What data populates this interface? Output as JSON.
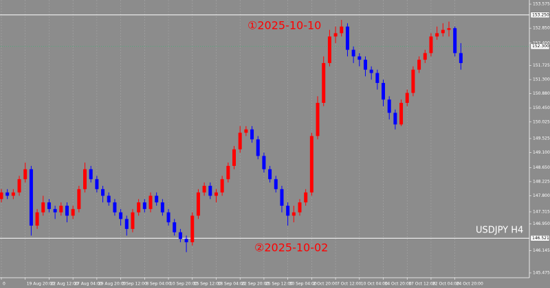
{
  "chart_data": {
    "type": "candlestick",
    "symbol_label": "USDJPY  H4",
    "background": "#8c8c8c",
    "up_color": "#ff0000",
    "down_color": "#0000ff",
    "grid": true,
    "categories": [
      "0",
      null,
      null,
      null,
      "19 Aug 20:00",
      null,
      null,
      null,
      "22 Aug 12:00",
      null,
      null,
      null,
      "27 Aug 04:00",
      null,
      null,
      null,
      "29 Aug 20:00",
      null,
      null,
      null,
      "3 Sep 12:00",
      null,
      null,
      null,
      "8 Sep 04:00",
      null,
      null,
      null,
      "10 Sep 20:00",
      null,
      null,
      null,
      "15 Sep 12:00",
      null,
      null,
      null,
      "18 Sep 04:00",
      null,
      null,
      null,
      "22 Sep 20:00",
      null,
      null,
      null,
      "25 Sep 12:00",
      null,
      null,
      null,
      "30 Sep 04:00",
      null,
      null,
      null,
      "2 Oct 20:00",
      null,
      null,
      null,
      "7 Oct 12:00",
      null,
      null,
      null,
      "10 Oct 04:00",
      null,
      null,
      null,
      "14 Oct 20:00",
      null,
      null,
      null,
      "17 Oct 12:00",
      null,
      null,
      null,
      "22 Oct 04:00",
      null,
      null,
      null,
      "24 Oct 20:00",
      null
    ],
    "open": [
      147.7,
      147.9,
      147.8,
      147.9,
      148.3,
      148.6,
      146.9,
      147.3,
      147.6,
      147.4,
      147.3,
      147.5,
      147.2,
      147.4,
      148.0,
      148.6,
      148.3,
      148.0,
      147.8,
      147.6,
      147.3,
      147.1,
      146.8,
      147.3,
      147.6,
      147.4,
      147.8,
      147.6,
      147.3,
      147.0,
      146.7,
      146.5,
      146.4,
      147.2,
      147.9,
      148.1,
      147.8,
      147.9,
      148.3,
      148.7,
      149.2,
      149.7,
      149.8,
      149.5,
      149.0,
      148.6,
      148.3,
      148.0,
      147.5,
      147.2,
      147.3,
      147.6,
      147.9,
      149.6,
      150.6,
      151.8,
      152.6,
      152.7,
      152.9,
      152.2,
      152.0,
      151.9,
      151.6,
      151.5,
      151.2,
      150.7,
      150.3,
      149.95,
      150.6,
      150.9,
      151.6,
      151.9,
      152.1,
      152.6,
      152.7,
      152.8,
      152.85,
      152.1
    ],
    "high": [
      148.0,
      148.0,
      148.0,
      148.4,
      148.8,
      148.7,
      147.4,
      147.8,
      147.7,
      147.5,
      147.6,
      147.6,
      147.5,
      148.1,
      148.8,
      148.7,
      148.4,
      148.1,
      147.9,
      147.7,
      147.4,
      147.2,
      147.4,
      147.7,
      147.7,
      147.9,
      147.9,
      147.7,
      147.4,
      147.1,
      146.8,
      146.6,
      147.3,
      148.0,
      148.2,
      148.2,
      148.0,
      148.4,
      148.8,
      149.3,
      149.9,
      149.9,
      149.9,
      149.6,
      149.1,
      148.7,
      148.4,
      148.1,
      147.6,
      147.5,
      147.7,
      148.0,
      149.7,
      150.8,
      152.0,
      152.8,
      152.9,
      153.1,
      153.0,
      152.3,
      152.1,
      152.0,
      151.7,
      151.6,
      151.3,
      150.8,
      150.4,
      150.7,
      151.0,
      151.7,
      152.0,
      152.2,
      152.7,
      152.9,
      153.0,
      153.05,
      152.9,
      152.4
    ],
    "low": [
      147.6,
      147.7,
      147.7,
      147.8,
      148.2,
      146.6,
      146.8,
      147.2,
      147.3,
      147.1,
      147.2,
      147.0,
      147.1,
      147.3,
      147.9,
      148.2,
      147.9,
      147.6,
      147.5,
      147.2,
      146.9,
      146.6,
      146.7,
      147.2,
      147.3,
      147.3,
      147.5,
      147.2,
      146.9,
      146.6,
      146.4,
      146.1,
      146.3,
      147.1,
      147.8,
      147.7,
      147.6,
      147.8,
      148.2,
      148.6,
      149.1,
      149.6,
      149.4,
      148.9,
      148.5,
      148.2,
      147.9,
      147.3,
      146.9,
      147.0,
      147.2,
      147.5,
      147.8,
      149.5,
      150.5,
      151.7,
      152.4,
      152.6,
      152.0,
      151.8,
      151.7,
      151.4,
      151.3,
      151.0,
      150.5,
      150.1,
      149.8,
      149.9,
      150.5,
      150.8,
      151.5,
      151.8,
      152.0,
      152.5,
      152.6,
      152.6,
      152.0,
      151.6
    ],
    "close": [
      147.9,
      147.8,
      147.9,
      148.3,
      148.6,
      146.9,
      147.3,
      147.6,
      147.4,
      147.3,
      147.5,
      147.2,
      147.4,
      148.0,
      148.6,
      148.3,
      148.0,
      147.8,
      147.6,
      147.3,
      147.1,
      146.8,
      147.3,
      147.6,
      147.4,
      147.8,
      147.6,
      147.3,
      147.0,
      146.7,
      146.5,
      146.4,
      147.2,
      147.9,
      148.1,
      147.8,
      147.9,
      148.3,
      148.7,
      149.2,
      149.7,
      149.8,
      149.5,
      149.0,
      148.6,
      148.3,
      148.0,
      147.5,
      147.2,
      147.3,
      147.6,
      147.9,
      149.6,
      150.6,
      151.8,
      152.6,
      152.7,
      152.9,
      152.2,
      152.0,
      151.9,
      151.6,
      151.5,
      151.2,
      150.7,
      150.3,
      149.95,
      150.6,
      150.9,
      151.6,
      151.9,
      152.1,
      152.6,
      152.7,
      152.8,
      152.85,
      152.1,
      151.8
    ],
    "ylim": [
      145.33,
      153.7
    ],
    "yticks": [
      153.575,
      {
        "value": 152.85,
        "label": "152.850"
      },
      {
        "value": 152.4,
        "label": "152.400"
      },
      151.725,
      {
        "value": 151.3,
        "label": "151.300"
      },
      {
        "value": 150.88,
        "label": "150.880"
      },
      {
        "value": 150.45,
        "label": "150.450"
      },
      150.025,
      149.525,
      {
        "value": 149.1,
        "label": "149.100"
      },
      {
        "value": 148.65,
        "label": "148.650"
      },
      148.225,
      {
        "value": 147.8,
        "label": "147.800"
      },
      147.315,
      {
        "value": 146.95,
        "label": "146.950"
      },
      146.145,
      145.475
    ],
    "levels": [
      {
        "value": 153.25,
        "label": "153.250",
        "color": "#ffffff"
      },
      {
        "value": 152.3,
        "label": "152.300",
        "color": "#3cb371"
      },
      {
        "value": 146.521,
        "label": "146.521",
        "color": "#ffffff"
      }
    ],
    "annotations": [
      {
        "text": "①2025-10-10",
        "color": "#ff0000"
      },
      {
        "text": "②2025-10-02",
        "color": "#ff0000"
      }
    ]
  }
}
